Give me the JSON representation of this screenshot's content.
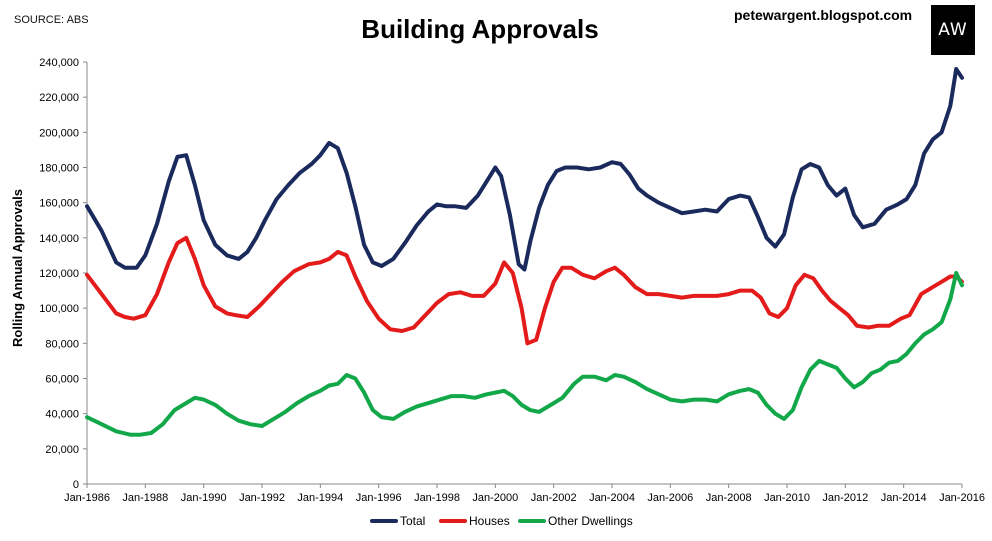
{
  "source": "SOURCE: ABS",
  "site": "petewargent.blogspot.com",
  "logo": "AW",
  "chart_data": {
    "type": "line",
    "title": "Building Approvals",
    "xlabel": "",
    "ylabel": "Rolling Annual Approvals",
    "ylim": [
      0,
      240000
    ],
    "xlim": [
      "Jan-1986",
      "Jan-2016"
    ],
    "y_ticks": [
      0,
      20000,
      40000,
      60000,
      80000,
      100000,
      120000,
      140000,
      160000,
      180000,
      200000,
      220000,
      240000
    ],
    "y_tick_labels": [
      "0",
      "20,000",
      "40,000",
      "60,000",
      "80,000",
      "100,000",
      "120,000",
      "140,000",
      "160,000",
      "180,000",
      "200,000",
      "220,000",
      "240,000"
    ],
    "x_tick_labels": [
      "Jan-1986",
      "Jan-1988",
      "Jan-1990",
      "Jan-1992",
      "Jan-1994",
      "Jan-1996",
      "Jan-1998",
      "Jan-2000",
      "Jan-2002",
      "Jan-2004",
      "Jan-2006",
      "Jan-2008",
      "Jan-2010",
      "Jan-2012",
      "Jan-2014",
      "Jan-2016"
    ],
    "grid": false,
    "legend_position": "bottom",
    "series": [
      {
        "name": "Total",
        "color": "#1a2a5c",
        "x": [
          1986.0,
          1986.5,
          1987.0,
          1987.3,
          1987.7,
          1988.0,
          1988.4,
          1988.8,
          1989.1,
          1989.4,
          1989.7,
          1990.0,
          1990.4,
          1990.8,
          1991.2,
          1991.5,
          1991.8,
          1992.1,
          1992.5,
          1992.9,
          1993.3,
          1993.7,
          1994.0,
          1994.3,
          1994.6,
          1994.9,
          1995.2,
          1995.5,
          1995.8,
          1996.1,
          1996.5,
          1996.9,
          1997.3,
          1997.7,
          1998.0,
          1998.3,
          1998.6,
          1999.0,
          1999.4,
          1999.7,
          2000.0,
          2000.2,
          2000.5,
          2000.8,
          2001.0,
          2001.2,
          2001.5,
          2001.8,
          2002.1,
          2002.4,
          2002.8,
          2003.2,
          2003.6,
          2004.0,
          2004.3,
          2004.6,
          2004.9,
          2005.2,
          2005.6,
          2006.0,
          2006.4,
          2006.8,
          2007.2,
          2007.6,
          2008.0,
          2008.4,
          2008.7,
          2009.0,
          2009.3,
          2009.6,
          2009.9,
          2010.2,
          2010.5,
          2010.8,
          2011.1,
          2011.4,
          2011.7,
          2012.0,
          2012.3,
          2012.6,
          2013.0,
          2013.4,
          2013.8,
          2014.1,
          2014.4,
          2014.7,
          2015.0,
          2015.3,
          2015.6,
          2015.8,
          2016.0
        ],
        "y": [
          158000,
          144000,
          126000,
          123000,
          123000,
          130000,
          148000,
          172000,
          186000,
          187000,
          170000,
          150000,
          136000,
          130000,
          128000,
          132000,
          140000,
          150000,
          162000,
          170000,
          177000,
          182000,
          187000,
          194000,
          191000,
          177000,
          158000,
          136000,
          126000,
          124000,
          128000,
          137000,
          147000,
          155000,
          159000,
          158000,
          158000,
          157000,
          164000,
          172000,
          180000,
          175000,
          153000,
          125000,
          122000,
          138000,
          157000,
          170000,
          178000,
          180000,
          180000,
          179000,
          180000,
          183000,
          182000,
          176000,
          168000,
          164000,
          160000,
          157000,
          154000,
          155000,
          156000,
          155000,
          162000,
          164000,
          163000,
          152000,
          140000,
          135000,
          142000,
          163000,
          179000,
          182000,
          180000,
          170000,
          164000,
          168000,
          153000,
          146000,
          148000,
          156000,
          159000,
          162000,
          170000,
          188000,
          196000,
          200000,
          215000,
          236000,
          231000
        ]
      },
      {
        "name": "Houses",
        "color": "#e31b1b",
        "x": [
          1986.0,
          1986.5,
          1987.0,
          1987.3,
          1987.6,
          1988.0,
          1988.4,
          1988.8,
          1989.1,
          1989.4,
          1989.7,
          1990.0,
          1990.4,
          1990.8,
          1991.1,
          1991.5,
          1991.9,
          1992.3,
          1992.7,
          1993.1,
          1993.6,
          1994.0,
          1994.3,
          1994.6,
          1994.9,
          1995.2,
          1995.6,
          1996.0,
          1996.4,
          1996.8,
          1997.2,
          1997.6,
          1998.0,
          1998.4,
          1998.8,
          1999.2,
          1999.6,
          2000.0,
          2000.3,
          2000.6,
          2000.9,
          2001.1,
          2001.4,
          2001.7,
          2002.0,
          2002.3,
          2002.6,
          2003.0,
          2003.4,
          2003.8,
          2004.1,
          2004.4,
          2004.8,
          2005.2,
          2005.6,
          2006.0,
          2006.4,
          2006.8,
          2007.2,
          2007.6,
          2008.0,
          2008.4,
          2008.8,
          2009.1,
          2009.4,
          2009.7,
          2010.0,
          2010.3,
          2010.6,
          2010.9,
          2011.2,
          2011.5,
          2011.8,
          2012.1,
          2012.4,
          2012.8,
          2013.1,
          2013.5,
          2013.9,
          2014.2,
          2014.6,
          2015.0,
          2015.3,
          2015.6,
          2015.8,
          2016.0
        ],
        "y": [
          119000,
          108000,
          97000,
          95000,
          94000,
          96000,
          108000,
          126000,
          137000,
          140000,
          128000,
          113000,
          101000,
          97000,
          96000,
          95000,
          101000,
          108000,
          115000,
          121000,
          125000,
          126000,
          128000,
          132000,
          130000,
          118000,
          104000,
          94000,
          88000,
          87000,
          89000,
          96000,
          103000,
          108000,
          109000,
          107000,
          107000,
          114000,
          126000,
          120000,
          100000,
          80000,
          82000,
          100000,
          115000,
          123000,
          123000,
          119000,
          117000,
          121000,
          123000,
          119000,
          112000,
          108000,
          108000,
          107000,
          106000,
          107000,
          107000,
          107000,
          108000,
          110000,
          110000,
          106000,
          97000,
          95000,
          100000,
          113000,
          119000,
          117000,
          110000,
          104000,
          100000,
          96000,
          90000,
          89000,
          90000,
          90000,
          94000,
          96000,
          108000,
          112000,
          115000,
          118000,
          118000,
          115000
        ]
      },
      {
        "name": "Other Dwellings",
        "color": "#12a84a",
        "x": [
          1986.0,
          1986.5,
          1987.0,
          1987.5,
          1987.8,
          1988.2,
          1988.6,
          1989.0,
          1989.3,
          1989.7,
          1990.0,
          1990.4,
          1990.8,
          1991.2,
          1991.6,
          1992.0,
          1992.4,
          1992.8,
          1993.2,
          1993.6,
          1994.0,
          1994.3,
          1994.6,
          1994.9,
          1995.2,
          1995.5,
          1995.8,
          1996.1,
          1996.5,
          1996.9,
          1997.3,
          1997.7,
          1998.1,
          1998.5,
          1998.9,
          1999.3,
          1999.7,
          2000.0,
          2000.3,
          2000.6,
          2000.9,
          2001.2,
          2001.5,
          2001.9,
          2002.3,
          2002.7,
          2003.0,
          2003.4,
          2003.8,
          2004.1,
          2004.4,
          2004.8,
          2005.2,
          2005.6,
          2006.0,
          2006.4,
          2006.8,
          2007.2,
          2007.6,
          2008.0,
          2008.4,
          2008.7,
          2009.0,
          2009.3,
          2009.6,
          2009.9,
          2010.2,
          2010.5,
          2010.8,
          2011.1,
          2011.4,
          2011.7,
          2012.0,
          2012.3,
          2012.6,
          2012.9,
          2013.2,
          2013.5,
          2013.8,
          2014.1,
          2014.4,
          2014.7,
          2015.0,
          2015.3,
          2015.6,
          2015.8,
          2016.0
        ],
        "y": [
          38000,
          34000,
          30000,
          28000,
          28000,
          29000,
          34000,
          42000,
          45000,
          49000,
          48000,
          45000,
          40000,
          36000,
          34000,
          33000,
          37000,
          41000,
          46000,
          50000,
          53000,
          56000,
          57000,
          62000,
          60000,
          52000,
          42000,
          38000,
          37000,
          41000,
          44000,
          46000,
          48000,
          50000,
          50000,
          49000,
          51000,
          52000,
          53000,
          50000,
          45000,
          42000,
          41000,
          45000,
          49000,
          57000,
          61000,
          61000,
          59000,
          62000,
          61000,
          58000,
          54000,
          51000,
          48000,
          47000,
          48000,
          48000,
          47000,
          51000,
          53000,
          54000,
          52000,
          45000,
          40000,
          37000,
          42000,
          55000,
          65000,
          70000,
          68000,
          66000,
          60000,
          55000,
          58000,
          63000,
          65000,
          69000,
          70000,
          74000,
          80000,
          85000,
          88000,
          92000,
          105000,
          120000,
          113000
        ]
      }
    ]
  }
}
